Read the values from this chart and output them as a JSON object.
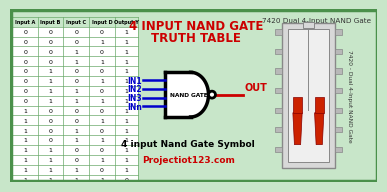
{
  "title1": "4 INPUT NAND GATE",
  "title2": "TRUTH TABLE",
  "subtitle_right": "7420 Dual 4-Input NAND Gate",
  "symbol_label": "4 input Nand Gate Symbol",
  "website": "Projectiot123.com",
  "gate_label": "NAND GATE",
  "out_label": "OUT",
  "inputs": [
    "IN1",
    "IN2",
    "IN3",
    "INn"
  ],
  "col_headers": [
    "Input A",
    "Input B",
    "Input C",
    "Input D",
    "Output Y"
  ],
  "table_data": [
    [
      0,
      0,
      0,
      0,
      1
    ],
    [
      0,
      0,
      0,
      1,
      1
    ],
    [
      0,
      0,
      1,
      0,
      1
    ],
    [
      0,
      0,
      1,
      1,
      1
    ],
    [
      0,
      1,
      0,
      0,
      1
    ],
    [
      0,
      1,
      0,
      1,
      1
    ],
    [
      0,
      1,
      1,
      0,
      1
    ],
    [
      0,
      1,
      1,
      1,
      1
    ],
    [
      1,
      0,
      0,
      0,
      1
    ],
    [
      1,
      0,
      0,
      1,
      1
    ],
    [
      1,
      0,
      1,
      0,
      1
    ],
    [
      1,
      0,
      1,
      1,
      1
    ],
    [
      1,
      1,
      0,
      0,
      1
    ],
    [
      1,
      1,
      0,
      1,
      1
    ],
    [
      1,
      1,
      1,
      0,
      1
    ],
    [
      1,
      1,
      1,
      1,
      0
    ]
  ],
  "bg_color": "#c8e6c9",
  "table_bg": "#ffffff",
  "table_header_bg": "#c8e6c9",
  "title_color": "#cc0000",
  "subtitle_right_color": "#333333",
  "symbol_label_color": "#000000",
  "website_color": "#cc0000",
  "gate_text_color": "#000000",
  "out_color": "#cc0000",
  "in_color": "#0000cc",
  "gate_body_color": "#000000",
  "out_line_color": "#cc0000",
  "in_line_color": "#0000cc",
  "table_line_color": "#6aaa6a",
  "table_text_color": "#000000",
  "header_text_color": "#000000",
  "chip_body": "#d8d8d8",
  "chip_border": "#888888",
  "chip_pin": "#b8b8b8",
  "chip_red": "#cc2200",
  "chip_label_color": "#333333",
  "border_color": "#4a904a"
}
